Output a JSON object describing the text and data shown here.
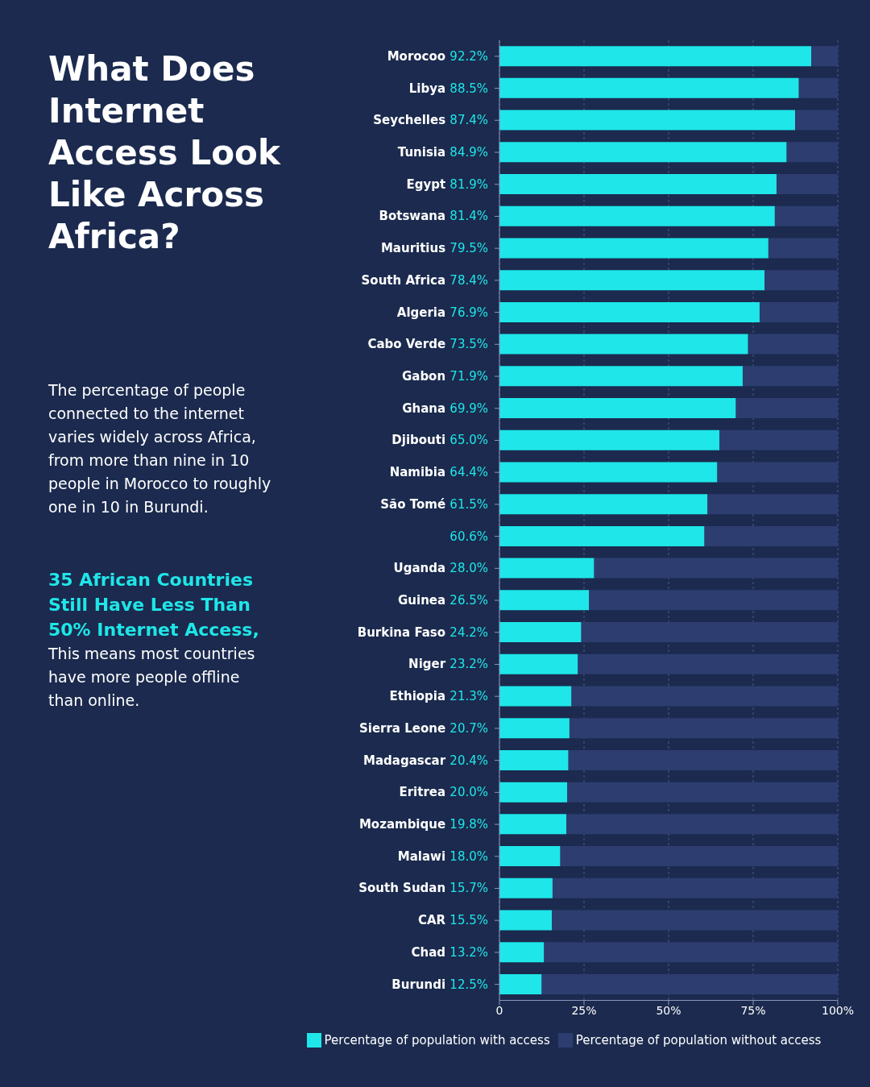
{
  "chart_data": {
    "type": "bar",
    "orientation": "horizontal",
    "stacked": true,
    "title": "What Does Internet Access Look Like Across Africa?",
    "annotations": [
      "The percentage of people connected to the internet varies widely across Africa, from more than nine in 10 people in Morocco to roughly one in 10 in Burundi.",
      "35 African Countries Still Have Less Than 50% Internet Access,",
      "This means most countries have more people offline than online."
    ],
    "categories": [
      "Morocoo",
      "Libya",
      "Seychelles",
      "Tunisia",
      "Egypt",
      "Botswana",
      "Mauritius",
      "South Africa",
      "Algeria",
      "Cabo Verde",
      "Gabon",
      "Ghana",
      "Djibouti",
      "Namibia",
      "São Tomé",
      null,
      "Uganda",
      "Guinea",
      "Burkina Faso",
      "Niger",
      "Ethiopia",
      "Sierra Leone",
      "Madagascar",
      "Eritrea",
      "Mozambique",
      "Malawi",
      "South Sudan",
      "CAR",
      "Chad",
      "Burundi"
    ],
    "value_labels": [
      "92.2%",
      "88.5%",
      "87.4%",
      "84.9%",
      "81.9%",
      "81.4%",
      "79.5%",
      "78.4%",
      "76.9%",
      "73.5%",
      "71.9%",
      "69.9%",
      "65.0%",
      "64.4%",
      "61.5%",
      "60.6%",
      "28.0%",
      "26.5%",
      "24.2%",
      "23.2%",
      "21.3%",
      "20.7%",
      "20.4%",
      "20.0%",
      "19.8%",
      "18.0%",
      "15.7%",
      "15.5%",
      "13.2%",
      "12.5%"
    ],
    "series": [
      {
        "name": "Percentage of population with access",
        "color": "#1fe6e8",
        "values": [
          92.2,
          88.5,
          87.4,
          84.9,
          81.9,
          81.4,
          79.5,
          78.4,
          76.9,
          73.5,
          71.9,
          69.9,
          65.0,
          64.4,
          61.5,
          60.6,
          28.0,
          26.5,
          24.2,
          23.2,
          21.3,
          20.7,
          20.4,
          20.0,
          19.8,
          18.0,
          15.7,
          15.5,
          13.2,
          12.5
        ]
      },
      {
        "name": "Percentage of population without access",
        "color": "#2e3d6f",
        "values": [
          7.8,
          11.5,
          12.6,
          15.1,
          18.1,
          18.6,
          20.5,
          21.6,
          23.1,
          26.5,
          28.1,
          30.1,
          35.0,
          35.6,
          38.5,
          39.4,
          72.0,
          73.5,
          75.8,
          76.8,
          78.7,
          79.3,
          79.6,
          80.0,
          80.2,
          82.0,
          84.3,
          84.5,
          86.8,
          87.5
        ]
      }
    ],
    "xlim": [
      0,
      100
    ],
    "xticks": [
      0,
      {
        "value": 25,
        "label": "25%"
      },
      {
        "value": 50,
        "label": "50%"
      },
      {
        "value": 75,
        "label": "75%"
      },
      {
        "value": 100,
        "label": "100%"
      }
    ],
    "grid": "x",
    "legend": "bottom"
  }
}
